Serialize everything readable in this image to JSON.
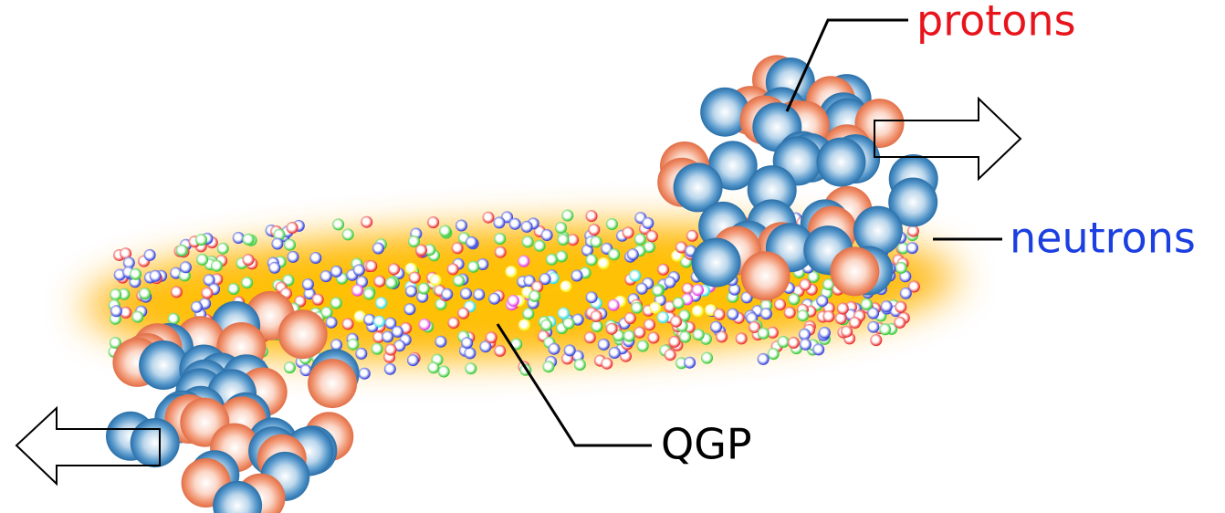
{
  "protons_label": "protons",
  "neutrons_label": "neutrons",
  "qgp_label": "QGP"
}
